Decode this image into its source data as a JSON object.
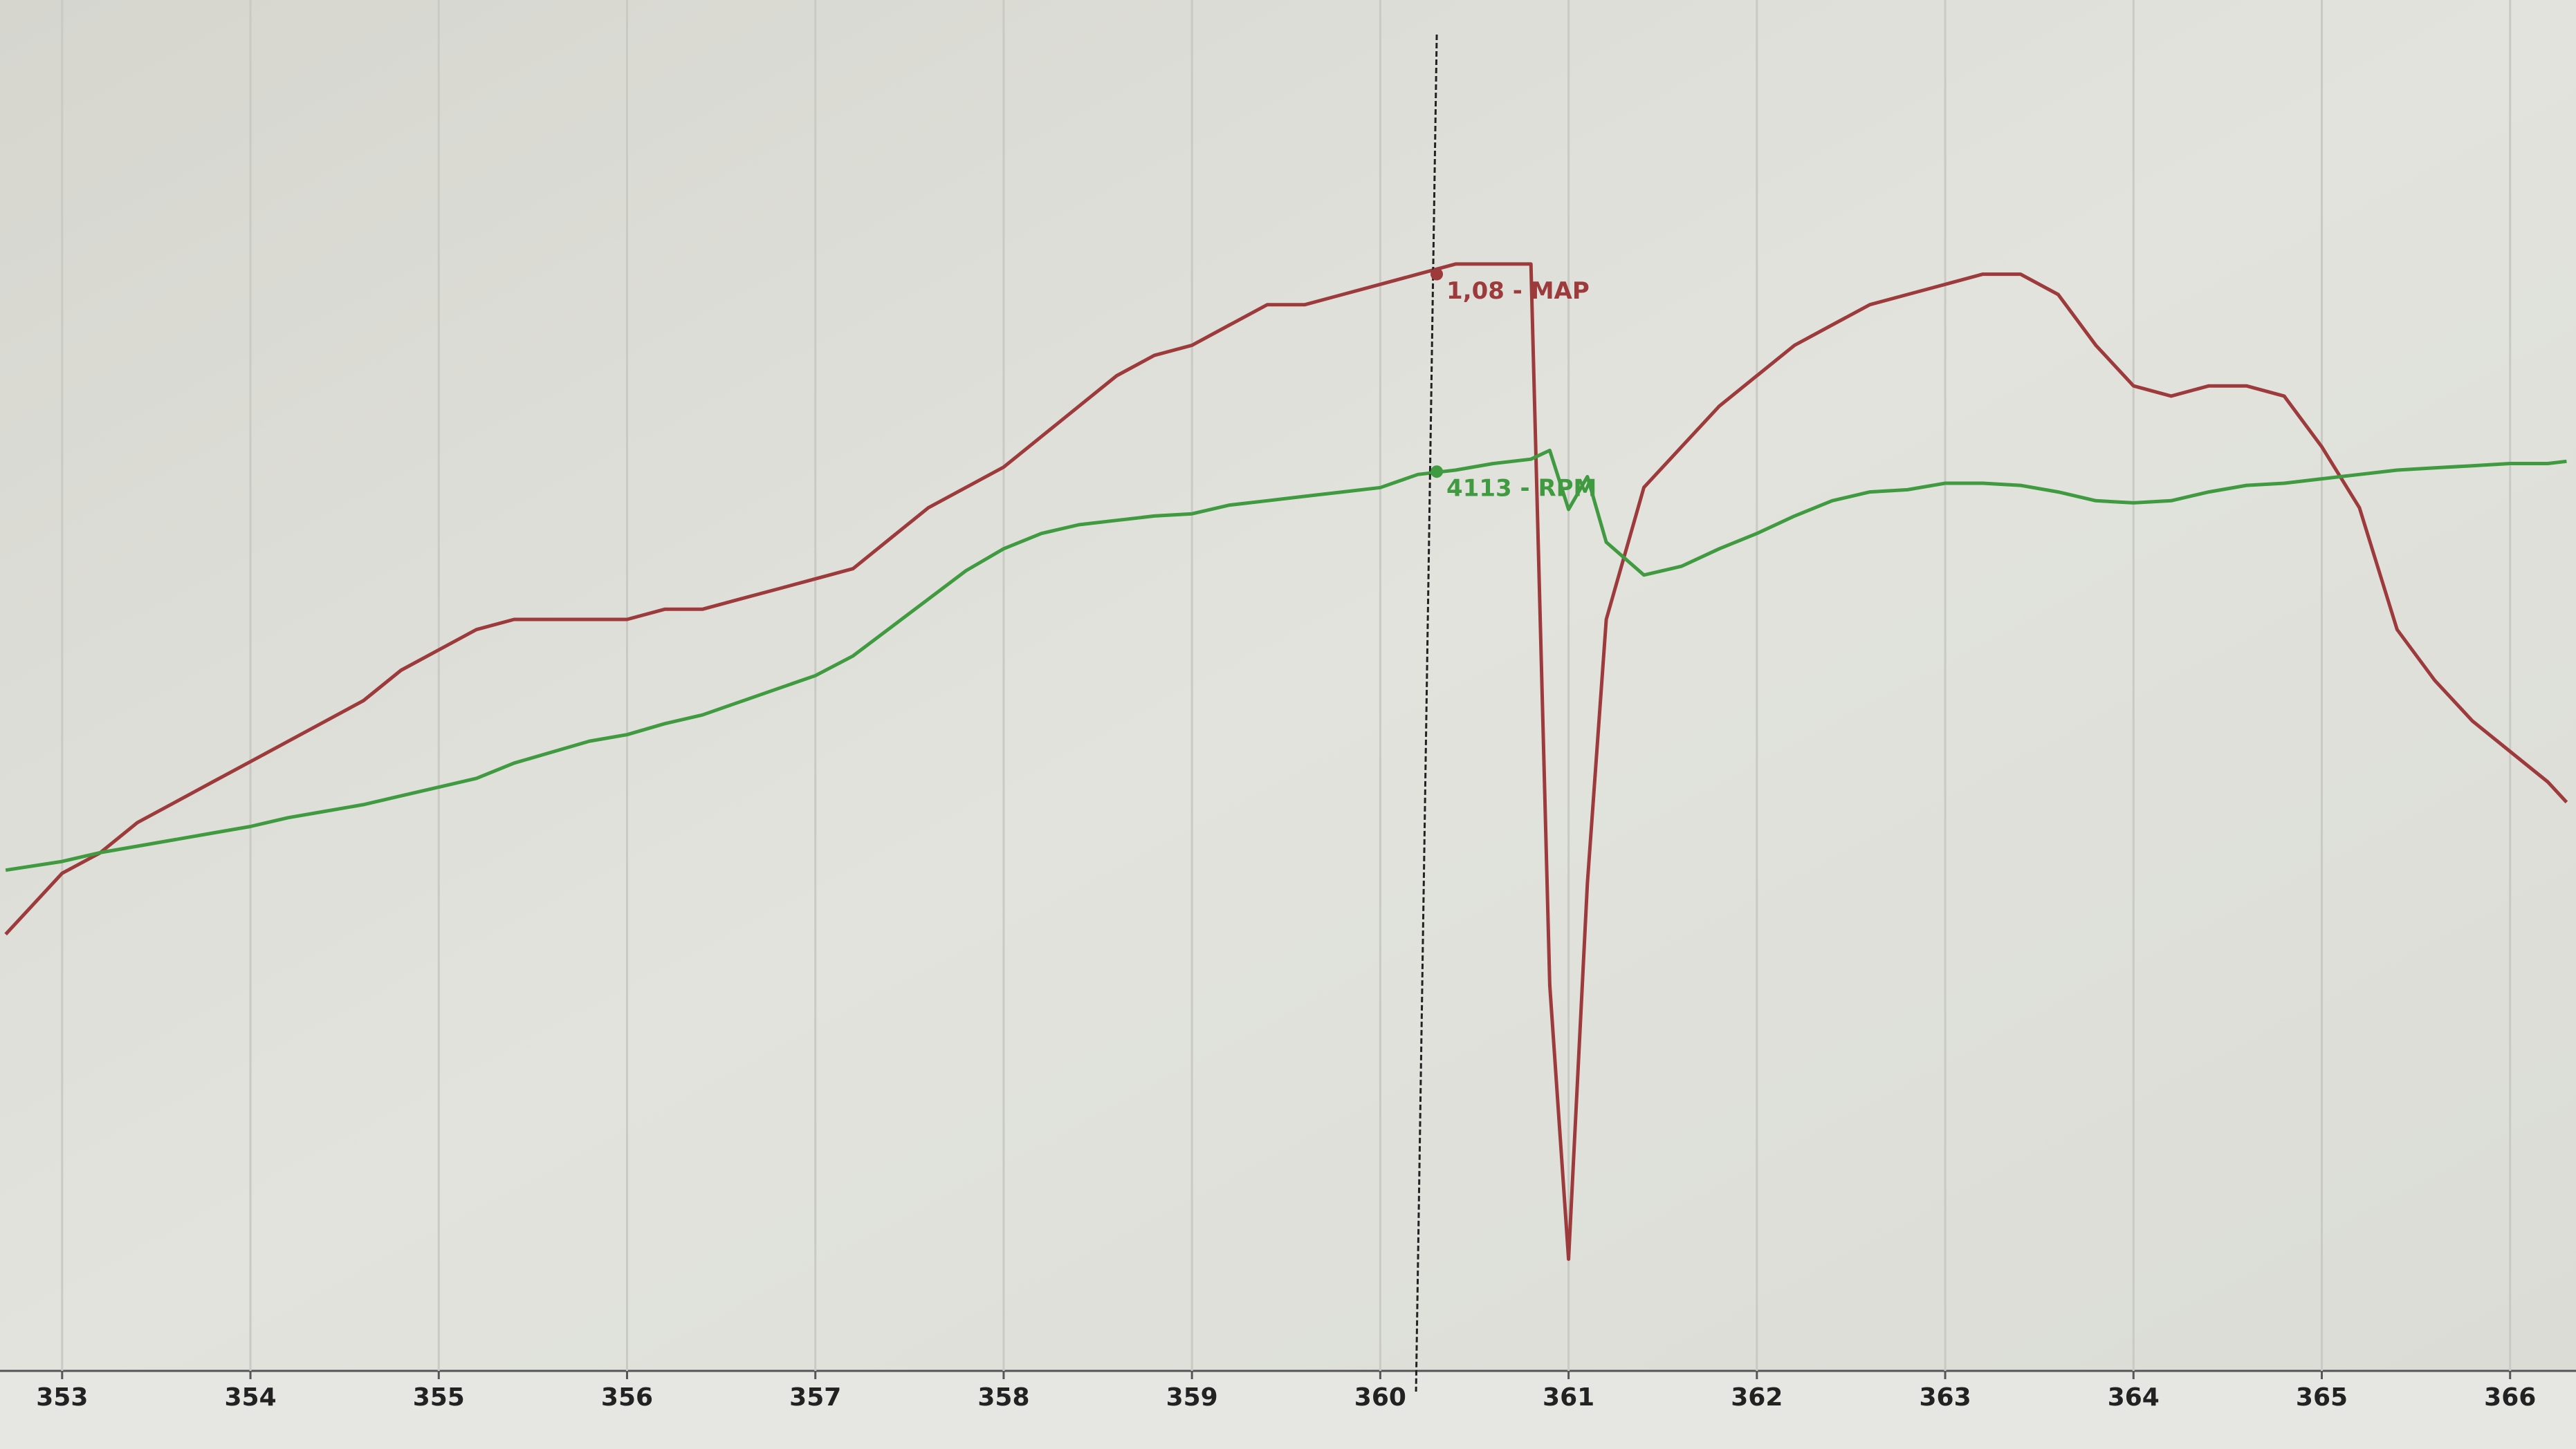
{
  "chart_data": {
    "type": "line",
    "x": [
      352.7,
      353.0,
      353.2,
      353.4,
      353.6,
      353.8,
      354.0,
      354.2,
      354.4,
      354.6,
      354.8,
      355.0,
      355.2,
      355.4,
      355.6,
      355.8,
      356.0,
      356.2,
      356.4,
      356.6,
      356.8,
      357.0,
      357.2,
      357.4,
      357.6,
      357.8,
      358.0,
      358.2,
      358.4,
      358.6,
      358.8,
      359.0,
      359.2,
      359.4,
      359.6,
      359.8,
      360.0,
      360.2,
      360.4,
      360.6,
      360.8,
      360.9,
      361.0,
      361.1,
      361.2,
      361.4,
      361.6,
      361.8,
      362.0,
      362.2,
      362.4,
      362.6,
      362.8,
      363.0,
      363.2,
      363.4,
      363.6,
      363.8,
      364.0,
      364.2,
      364.4,
      364.6,
      364.8,
      365.0,
      365.2,
      365.4,
      365.6,
      365.8,
      366.0,
      366.2,
      366.3
    ],
    "xlim": [
      352.67,
      366.35
    ],
    "xticks": [
      353,
      354,
      355,
      356,
      357,
      358,
      359,
      360,
      361,
      362,
      363,
      364,
      365,
      366
    ],
    "ylim": [
      0,
      1.35
    ],
    "y2lim": [
      0,
      6270
    ],
    "grid": true,
    "series": [
      {
        "color": "#9c3a3c",
        "values": [
          0.43,
          0.49,
          0.51,
          0.54,
          0.56,
          0.58,
          0.6,
          0.62,
          0.64,
          0.66,
          0.69,
          0.71,
          0.73,
          0.74,
          0.74,
          0.74,
          0.74,
          0.75,
          0.75,
          0.76,
          0.77,
          0.78,
          0.79,
          0.82,
          0.85,
          0.87,
          0.89,
          0.92,
          0.95,
          0.98,
          1.0,
          1.01,
          1.03,
          1.05,
          1.05,
          1.06,
          1.07,
          1.08,
          1.09,
          1.09,
          1.09,
          0.38,
          0.11,
          0.48,
          0.74,
          0.87,
          0.91,
          0.95,
          0.98,
          1.01,
          1.03,
          1.05,
          1.06,
          1.07,
          1.08,
          1.08,
          1.06,
          1.01,
          0.97,
          0.96,
          0.97,
          0.97,
          0.96,
          0.91,
          0.85,
          0.73,
          0.68,
          0.64,
          0.61,
          0.58,
          0.56
        ]
      },
      {
        "color": "#3f9a40",
        "axis": "y2",
        "values": [
          2290,
          2330,
          2370,
          2400,
          2430,
          2460,
          2490,
          2530,
          2560,
          2590,
          2630,
          2670,
          2710,
          2780,
          2830,
          2880,
          2910,
          2960,
          3000,
          3060,
          3120,
          3180,
          3270,
          3400,
          3530,
          3660,
          3760,
          3830,
          3870,
          3890,
          3910,
          3920,
          3960,
          3980,
          4000,
          4020,
          4040,
          4100,
          4120,
          4150,
          4170,
          4210,
          3940,
          4090,
          3790,
          3640,
          3680,
          3760,
          3830,
          3910,
          3980,
          4020,
          4030,
          4060,
          4060,
          4050,
          4020,
          3980,
          3970,
          3980,
          4020,
          4050,
          4060,
          4080,
          4100,
          4120,
          4130,
          4140,
          4150,
          4150,
          4160
        ]
      }
    ],
    "cursor": {
      "x": 360.3,
      "values": [
        1.08,
        4113
      ],
      "value_labels": [
        "1,08 - MAP",
        "4113 - RPM"
      ]
    }
  }
}
